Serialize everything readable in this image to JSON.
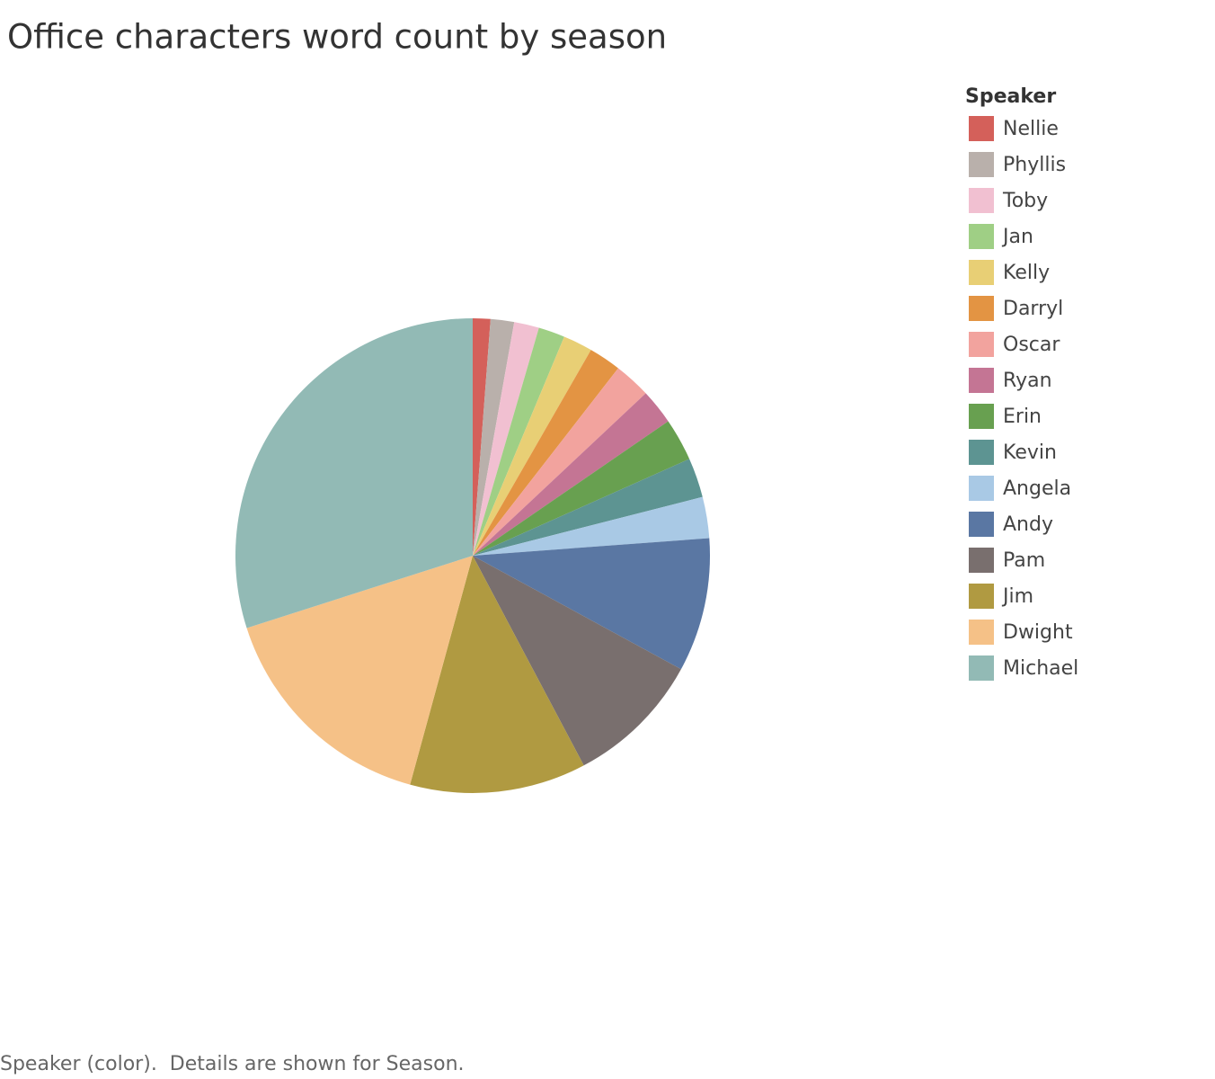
{
  "chart_data": {
    "type": "pie",
    "title": "Office characters word count by season",
    "legend_title": "Speaker",
    "footer": "Speaker (color).  Details are shown for Season.",
    "legend_position": "right",
    "series": [
      {
        "name": "Nellie",
        "color": "#d4605a",
        "values": [
          1.2
        ]
      },
      {
        "name": "Phyllis",
        "color": "#b9b0ab",
        "values": [
          1.6
        ]
      },
      {
        "name": "Toby",
        "color": "#f1c0d1",
        "values": [
          1.7
        ]
      },
      {
        "name": "Jan",
        "color": "#9fcf85",
        "values": [
          1.8
        ]
      },
      {
        "name": "Kelly",
        "color": "#e8cf75",
        "values": [
          2.0
        ]
      },
      {
        "name": "Darryl",
        "color": "#e39443",
        "values": [
          2.2
        ]
      },
      {
        "name": "Oscar",
        "color": "#f2a39e",
        "values": [
          2.5
        ]
      },
      {
        "name": "Ryan",
        "color": "#c47594",
        "values": [
          2.4
        ]
      },
      {
        "name": "Erin",
        "color": "#68a050",
        "values": [
          2.9
        ]
      },
      {
        "name": "Kevin",
        "color": "#5d9492",
        "values": [
          2.7
        ]
      },
      {
        "name": "Angela",
        "color": "#a9c9e5",
        "values": [
          2.8
        ]
      },
      {
        "name": "Andy",
        "color": "#5a77a3",
        "values": [
          9.1
        ]
      },
      {
        "name": "Pam",
        "color": "#796f6e",
        "values": [
          9.3
        ]
      },
      {
        "name": "Jim",
        "color": "#b09a41",
        "values": [
          12.0
        ]
      },
      {
        "name": "Dwight",
        "color": "#f5c187",
        "values": [
          15.8
        ]
      },
      {
        "name": "Michael",
        "color": "#92bab5",
        "values": [
          29.9
        ]
      }
    ]
  }
}
